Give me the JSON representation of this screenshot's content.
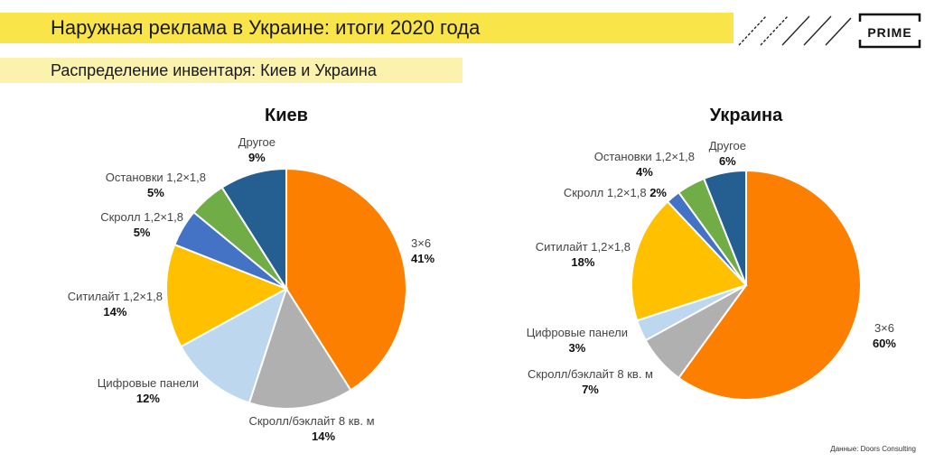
{
  "header": {
    "title": "Наружная реклама в Украине: итоги 2020 года",
    "subtitle": "Распределение инвентаря: Киев и Украина",
    "logo": "PRIME"
  },
  "source": "Данные: Doors Consulting",
  "colors": {
    "title_band": "#f9e54a",
    "subtitle_band": "#fbf2ae"
  },
  "chart_data": [
    {
      "type": "pie",
      "title": "Киев",
      "slices": [
        {
          "label": "3×6",
          "value": 41,
          "value_label": "41%",
          "color": "#fd7f00"
        },
        {
          "label": "Скролл/бэклайт 8 кв. м",
          "value": 14,
          "value_label": "14%",
          "color": "#b0b0b0"
        },
        {
          "label": "Цифровые панели",
          "value": 12,
          "value_label": "12%",
          "color": "#bdd7ee"
        },
        {
          "label": "Ситилайт 1,2×1,8",
          "value": 14,
          "value_label": "14%",
          "color": "#ffc000"
        },
        {
          "label": "Скролл  1,2×1,8",
          "value": 5,
          "value_label": "5%",
          "color": "#4472c4"
        },
        {
          "label": "Остановки 1,2×1,8",
          "value": 5,
          "value_label": "5%",
          "color": "#70ad47"
        },
        {
          "label": "Другое",
          "value": 9,
          "value_label": "9%",
          "color": "#255e91"
        }
      ]
    },
    {
      "type": "pie",
      "title": "Украина",
      "slices": [
        {
          "label": "3×6",
          "value": 60,
          "value_label": "60%",
          "color": "#fd7f00"
        },
        {
          "label": "Скролл/бэклайт 8 кв. м",
          "value": 7,
          "value_label": "7%",
          "color": "#b0b0b0"
        },
        {
          "label": "Цифровые панели",
          "value": 3,
          "value_label": "3%",
          "color": "#bdd7ee"
        },
        {
          "label": "Ситилайт 1,2×1,8",
          "value": 18,
          "value_label": "18%",
          "color": "#ffc000"
        },
        {
          "label": "Скролл 1,2×1,8",
          "value": 2,
          "value_label": "2%",
          "color": "#4472c4"
        },
        {
          "label": "Остановки 1,2×1,8",
          "value": 4,
          "value_label": "4%",
          "color": "#70ad47"
        },
        {
          "label": "Другое",
          "value": 6,
          "value_label": "6%",
          "color": "#255e91"
        }
      ]
    }
  ]
}
